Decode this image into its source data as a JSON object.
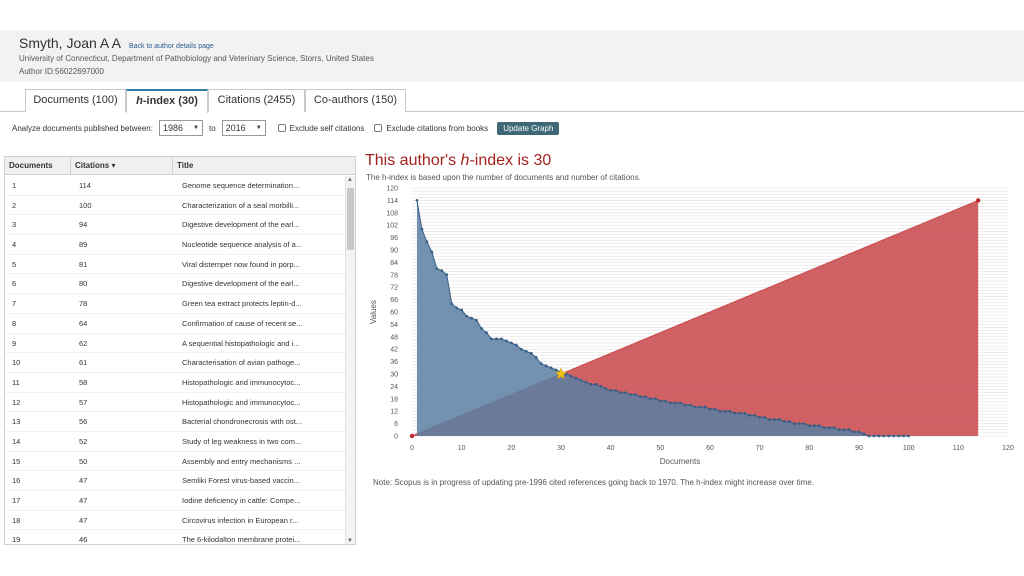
{
  "author": {
    "name": "Smyth, Joan A A",
    "back_link": "Back to author details page",
    "affiliation": "University of Connecticut, Department of Pathobiology and Veterinary Science, Storrs, United States",
    "author_id": "Author ID:56022697000"
  },
  "tabs": [
    {
      "label": "Documents (100)",
      "active": false
    },
    {
      "label_prefix": "h",
      "label": "-index (30)",
      "active": true
    },
    {
      "label": "Citations (2455)",
      "active": false
    },
    {
      "label": "Co-authors (150)",
      "active": false
    }
  ],
  "filters": {
    "analyze_label": "Analyze documents published between:",
    "from_year": "1986",
    "to_label": "to",
    "to_year": "2016",
    "exclude_self": "Exclude self citations",
    "exclude_books": "Exclude citations from books",
    "update_button": "Update Graph"
  },
  "table": {
    "headers": {
      "documents": "Documents",
      "citations": "Citations ▾",
      "title": "Title"
    },
    "rows": [
      {
        "n": "1",
        "c": "114",
        "t": "Genome sequence determination..."
      },
      {
        "n": "2",
        "c": "100",
        "t": "Characterization of a seal morbilli..."
      },
      {
        "n": "3",
        "c": "94",
        "t": "Digestive development of the earl..."
      },
      {
        "n": "4",
        "c": "89",
        "t": "Nucleotide sequence analysis of a..."
      },
      {
        "n": "5",
        "c": "81",
        "t": "Viral distemper now found in porp..."
      },
      {
        "n": "6",
        "c": "80",
        "t": "Digestive development of the earl..."
      },
      {
        "n": "7",
        "c": "78",
        "t": "Green tea extract protects leptin-d..."
      },
      {
        "n": "8",
        "c": "64",
        "t": "Confirmation of cause of recent se..."
      },
      {
        "n": "9",
        "c": "62",
        "t": "A sequential histopathologic and i..."
      },
      {
        "n": "10",
        "c": "61",
        "t": "Characterisation of avian pathoge..."
      },
      {
        "n": "11",
        "c": "58",
        "t": "Histopathologic and immunocytoc..."
      },
      {
        "n": "12",
        "c": "57",
        "t": "Histopathologic and immunocytoc..."
      },
      {
        "n": "13",
        "c": "56",
        "t": "Bacterial chondronecrosis with ost..."
      },
      {
        "n": "14",
        "c": "52",
        "t": "Study of leg weakness in two com..."
      },
      {
        "n": "15",
        "c": "50",
        "t": "Assembly and entry mechanisms ..."
      },
      {
        "n": "16",
        "c": "47",
        "t": "Semliki Forest virus-based vaccin..."
      },
      {
        "n": "17",
        "c": "47",
        "t": "Iodine deficiency in cattle: Compe..."
      },
      {
        "n": "18",
        "c": "47",
        "t": "Circovirus infection in European r..."
      },
      {
        "n": "19",
        "c": "46",
        "t": "The 6-kilodalton membrane protei..."
      }
    ]
  },
  "chart": {
    "title_prefix": "This author's ",
    "title_italic": "h",
    "title_suffix": "-index is 30",
    "subtitle": "The h-index is based upon the number of documents and number of citations.",
    "note": "Note: Scopus is in progress of updating pre-1996 cited references going back to 1970. The h-index might increase over time.",
    "colors": {
      "citations_area": "#5a7fa3",
      "diagonal_area": "#c8474a",
      "star": "#f2c018"
    }
  },
  "chart_data": {
    "type": "area",
    "xlabel": "Documents",
    "ylabel": "Values",
    "xlim": [
      0,
      120
    ],
    "ylim": [
      0,
      120
    ],
    "x_ticks": [
      0,
      10,
      20,
      30,
      40,
      50,
      60,
      70,
      80,
      90,
      100,
      110,
      120
    ],
    "y_ticks": [
      0,
      6,
      12,
      18,
      24,
      30,
      36,
      42,
      48,
      54,
      60,
      66,
      72,
      78,
      84,
      90,
      96,
      102,
      108,
      114,
      120
    ],
    "grid": true,
    "h_index": 30,
    "series": [
      {
        "name": "Citations",
        "x": [
          1,
          2,
          3,
          4,
          5,
          6,
          7,
          8,
          9,
          10,
          11,
          12,
          13,
          14,
          15,
          16,
          17,
          18,
          19,
          20,
          21,
          22,
          23,
          24,
          25,
          26,
          27,
          28,
          29,
          30,
          31,
          32,
          33,
          34,
          35,
          36,
          37,
          38,
          39,
          40,
          41,
          42,
          43,
          44,
          45,
          46,
          47,
          48,
          49,
          50,
          51,
          52,
          53,
          54,
          55,
          56,
          57,
          58,
          59,
          60,
          61,
          62,
          63,
          64,
          65,
          66,
          67,
          68,
          69,
          70,
          71,
          72,
          73,
          74,
          75,
          76,
          77,
          78,
          79,
          80,
          81,
          82,
          83,
          84,
          85,
          86,
          87,
          88,
          89,
          90,
          91,
          92,
          93,
          94,
          95,
          96,
          97,
          98,
          99,
          100
        ],
        "values": [
          114,
          100,
          94,
          89,
          81,
          80,
          78,
          64,
          62,
          61,
          58,
          57,
          56,
          52,
          50,
          47,
          47,
          47,
          46,
          45,
          44,
          42,
          41,
          40,
          38,
          35,
          34,
          33,
          32,
          31,
          30,
          29,
          28,
          27,
          26,
          25,
          25,
          24,
          23,
          22,
          22,
          21,
          21,
          20,
          20,
          19,
          19,
          18,
          18,
          17,
          17,
          16,
          16,
          16,
          15,
          15,
          14,
          14,
          14,
          13,
          13,
          12,
          12,
          12,
          11,
          11,
          11,
          10,
          10,
          9,
          9,
          8,
          8,
          8,
          7,
          7,
          6,
          6,
          6,
          5,
          5,
          5,
          4,
          4,
          4,
          3,
          3,
          3,
          2,
          2,
          1,
          0,
          0,
          0,
          0,
          0,
          0,
          0,
          0,
          0
        ]
      },
      {
        "name": "Documents",
        "x": [
          0,
          114
        ],
        "values": [
          0,
          114
        ]
      }
    ]
  }
}
